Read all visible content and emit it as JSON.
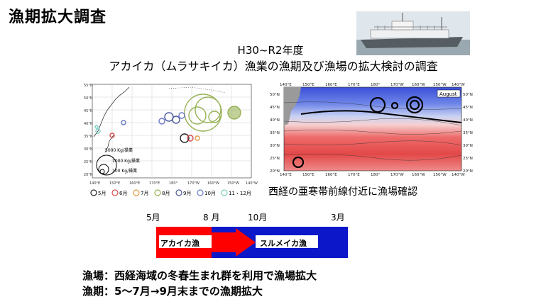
{
  "title": "漁期拡大調査",
  "subtitle1": "H30~R2年度",
  "subtitle2": "アカイカ（ムラサキイカ）漁業の漁期及び漁場の拡大検討の調査",
  "left_map": {
    "lon_ticks": [
      "140°E",
      "150°E",
      "160°E",
      "170°E",
      "180°",
      "170°W",
      "160°W",
      "150°W",
      "140°W"
    ],
    "lat_ticks": [
      "55°N",
      "50°N",
      "45°N",
      "40°N",
      "35°N",
      "30°N",
      "25°N",
      "20°N"
    ],
    "scale_labels": [
      "5000 Kg/操業",
      "1000 Kg/操業",
      "100 Kg/操業"
    ],
    "legend": [
      "5月",
      "6月",
      "7月",
      "8月",
      "9月",
      "10月",
      "11・12月"
    ],
    "legend_colors": [
      "#222222",
      "#d84b4b",
      "#e49a45",
      "#97b355",
      "#4a5a9a",
      "#6a7ac8",
      "#7ccfc2"
    ]
  },
  "right_map": {
    "lon_ticks": [
      "140°E",
      "150°E",
      "160°E",
      "170°E",
      "180°",
      "170°W",
      "160°W",
      "150°W",
      "140°W"
    ],
    "lat_ticks": [
      "50°N",
      "45°N",
      "40°N",
      "35°N",
      "30°N",
      "25°N",
      "20°N"
    ],
    "month_label": "August"
  },
  "caption": "西経の亜寒帯前線付近に漁場確認",
  "timeline": {
    "months": [
      "5月",
      "8 月",
      "10月",
      "3月"
    ],
    "bar1": "アカイカ漁",
    "bar2": "スルメイカ漁"
  },
  "bullets": [
    "漁場：西経海域の冬春生まれ群を利用で漁場拡大",
    "漁期：5～7月→9月末までの漁期拡大"
  ]
}
